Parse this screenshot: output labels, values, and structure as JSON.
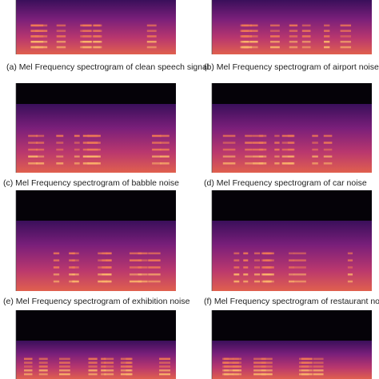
{
  "figure": {
    "captions": [
      "(a) Mel Frequency spectrogram of clean speech signal",
      "(b) Mel Frequency spectrogram of airport noise",
      "(c) Mel Frequency spectrogram of babble noise",
      "(d) Mel Frequency spectrogram of car noise",
      "(e) Mel Frequency spectrogram of exhibition noise",
      "(f) Mel Frequency spectrogram of restaurant noise"
    ]
  }
}
